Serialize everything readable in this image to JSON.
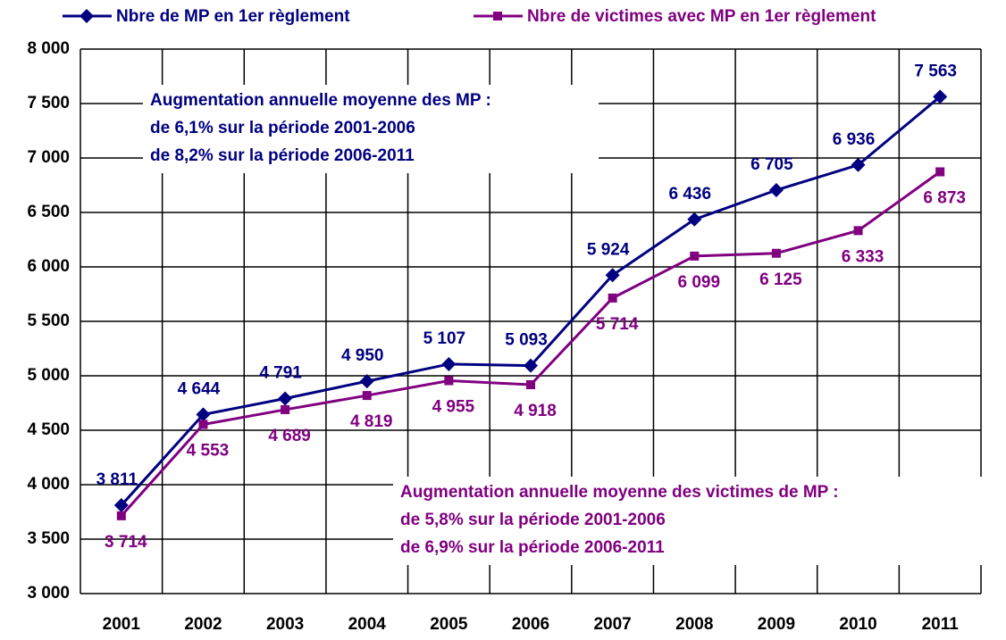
{
  "chart_data": {
    "type": "line",
    "categories": [
      "2001",
      "2002",
      "2003",
      "2004",
      "2005",
      "2006",
      "2007",
      "2008",
      "2009",
      "2010",
      "2011"
    ],
    "series": [
      {
        "name": "Nbre de MP en 1er règlement",
        "color": "#000080",
        "marker": "diamond",
        "values": [
          3811,
          4644,
          4791,
          4950,
          5107,
          5093,
          5924,
          6436,
          6705,
          6936,
          7563
        ],
        "value_labels": [
          "3 811",
          "4 644",
          "4 791",
          "4 950",
          "5 107",
          "5 093",
          "5 924",
          "6 436",
          "6 705",
          "6 936",
          "7 563"
        ]
      },
      {
        "name": "Nbre de victimes avec MP en 1er règlement",
        "color": "#800080",
        "marker": "square",
        "values": [
          3714,
          4553,
          4689,
          4819,
          4955,
          4918,
          5714,
          6099,
          6125,
          6333,
          6873
        ],
        "value_labels": [
          "3 714",
          "4 553",
          "4 689",
          "4 819",
          "4 955",
          "4 918",
          "5 714",
          "6 099",
          "6 125",
          "6 333",
          "6 873"
        ]
      }
    ],
    "ylim": [
      3000,
      8000
    ],
    "yticks": [
      {
        "value": 3000,
        "label": "3 000"
      },
      {
        "value": 3500,
        "label": "3 500"
      },
      {
        "value": 4000,
        "label": "4 000"
      },
      {
        "value": 4500,
        "label": "4 500"
      },
      {
        "value": 5000,
        "label": "5 000"
      },
      {
        "value": 5500,
        "label": "5 500"
      },
      {
        "value": 6000,
        "label": "6 000"
      },
      {
        "value": 6500,
        "label": "6 500"
      },
      {
        "value": 7000,
        "label": "7 000"
      },
      {
        "value": 7500,
        "label": "7 500"
      },
      {
        "value": 8000,
        "label": "8 000"
      }
    ],
    "grid": true,
    "legend": "top",
    "annotations": [
      {
        "lines": [
          "Augmentation annuelle moyenne des MP :",
          "de 6,1% sur la période 2001-2006",
          "de 8,2% sur la période 2006-2011"
        ],
        "color": "#000080"
      },
      {
        "lines": [
          "Augmentation annuelle moyenne des victimes de MP :",
          "de 5,8% sur la période 2001-2006",
          "de 6,9% sur la période 2006-2011"
        ],
        "color": "#800080"
      }
    ]
  }
}
